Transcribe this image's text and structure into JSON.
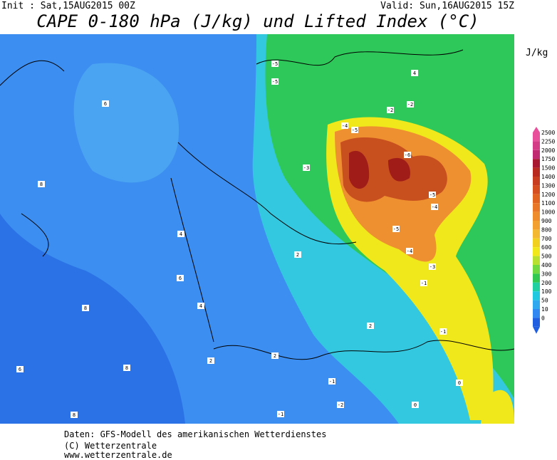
{
  "header": {
    "init": "Init : Sat,15AUG2015 00Z",
    "valid": "Valid: Sun,16AUG2015 15Z",
    "title": "CAPE 0-180 hPa (J/kg) und Lifted Index (°C)"
  },
  "colorbar": {
    "unit": "J/kg",
    "labels": [
      2500,
      2250,
      2000,
      1750,
      1500,
      1400,
      1300,
      1200,
      1100,
      1000,
      900,
      800,
      700,
      600,
      500,
      400,
      300,
      200,
      100,
      50,
      10,
      0
    ],
    "colors": [
      "#e8509c",
      "#d43c88",
      "#c02a70",
      "#a81830",
      "#b82a20",
      "#c83c20",
      "#d44e20",
      "#e06420",
      "#e87828",
      "#ee8c2c",
      "#f2a030",
      "#f4b830",
      "#f2d020",
      "#f0e81a",
      "#b8e030",
      "#70d840",
      "#30c850",
      "#20d0a0",
      "#20c8e0",
      "#30a8f0",
      "#3088f0",
      "#2060e0"
    ]
  },
  "contour_labels": [
    "-5",
    "-5",
    "-4",
    "-5",
    "-3",
    "-6",
    "-5",
    "-4",
    "-5",
    "-4",
    "-3",
    "-2",
    "-1",
    "-1",
    "-1",
    "-2",
    "-1",
    "0",
    "0",
    "2",
    "2",
    "4",
    "4",
    "6",
    "6",
    "6",
    "8",
    "8",
    "8",
    "8",
    "2",
    "4",
    "2",
    "-2"
  ],
  "footer": [
    "Daten: GFS-Modell des amerikanischen Wetterdienstes",
    "(C) Wetterzentrale",
    "www.wetterzentrale.de"
  ]
}
